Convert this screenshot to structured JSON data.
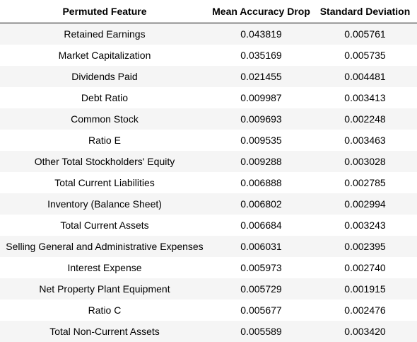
{
  "table": {
    "headers": [
      "Permuted Feature",
      "Mean Accuracy Drop",
      "Standard Deviation"
    ],
    "rows": [
      [
        "Retained Earnings",
        "0.043819",
        "0.005761"
      ],
      [
        "Market Capitalization",
        "0.035169",
        "0.005735"
      ],
      [
        "Dividends Paid",
        "0.021455",
        "0.004481"
      ],
      [
        "Debt Ratio",
        "0.009987",
        "0.003413"
      ],
      [
        "Common Stock",
        "0.009693",
        "0.002248"
      ],
      [
        "Ratio E",
        "0.009535",
        "0.003463"
      ],
      [
        "Other Total Stockholders' Equity",
        "0.009288",
        "0.003028"
      ],
      [
        "Total Current Liabilities",
        "0.006888",
        "0.002785"
      ],
      [
        "Inventory (Balance Sheet)",
        "0.006802",
        "0.002994"
      ],
      [
        "Total Current Assets",
        "0.006684",
        "0.003243"
      ],
      [
        "Selling General and Administrative Expenses",
        "0.006031",
        "0.002395"
      ],
      [
        "Interest Expense",
        "0.005973",
        "0.002740"
      ],
      [
        "Net Property Plant Equipment",
        "0.005729",
        "0.001915"
      ],
      [
        "Ratio C",
        "0.005677",
        "0.002476"
      ],
      [
        "Total Non-Current Assets",
        "0.005589",
        "0.003420"
      ]
    ]
  },
  "colors": {
    "stripe": "#f5f5f5",
    "header_border": "#000000",
    "text": "#000000"
  }
}
